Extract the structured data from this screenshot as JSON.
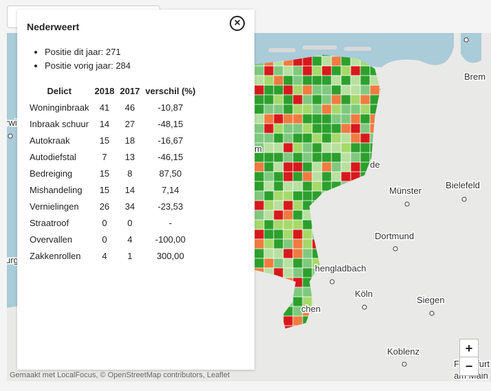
{
  "popup": {
    "title": "Nederweert",
    "bullets": [
      "Positie dit jaar: 271",
      "Positie vorig jaar: 284"
    ],
    "table": {
      "headers": [
        "Delict",
        "2018",
        "2017",
        "verschil (%)"
      ],
      "rows": [
        [
          "Woninginbraak",
          41,
          46,
          "-10,87"
        ],
        [
          "Inbraak schuur",
          14,
          27,
          "-48,15"
        ],
        [
          "Autokraak",
          15,
          18,
          "-16,67"
        ],
        [
          "Autodiefstal",
          7,
          13,
          "-46,15"
        ],
        [
          "Bedreiging",
          15,
          8,
          "87,50"
        ],
        [
          "Mishandeling",
          15,
          14,
          "7,14"
        ],
        [
          "Vernielingen",
          26,
          34,
          "-23,53"
        ],
        [
          "Straatroof",
          0,
          0,
          "-"
        ],
        [
          "Overvallen",
          0,
          4,
          "-100,00"
        ],
        [
          "Zakkenrollen",
          4,
          1,
          "300,00"
        ]
      ]
    }
  },
  "map": {
    "places": [
      "Brem",
      "Münster",
      "Bielefeld",
      "Dortmund",
      "hengladbach",
      "Köln",
      "Siegen",
      "Koblenz",
      "de",
      "chen",
      "m",
      "rwi",
      "urg",
      "Frankfurt",
      "am Main"
    ],
    "attribution": "Gemaakt met LocalFocus, © OpenStreetMap contributors, Leaflet",
    "zoom": [
      "+",
      "−"
    ]
  }
}
